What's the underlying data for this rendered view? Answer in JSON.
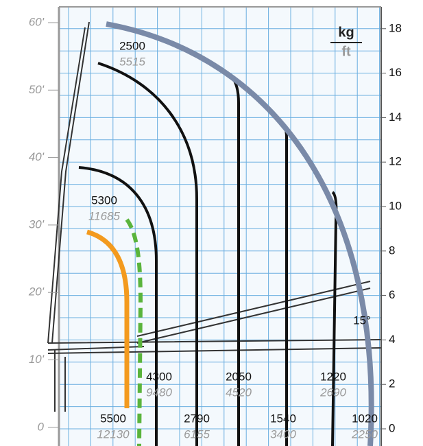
{
  "units": {
    "top": "kg",
    "bottom": "ft"
  },
  "left_axis": [
    "60'",
    "50'",
    "40'",
    "30'",
    "20'",
    "10'",
    "0"
  ],
  "right_axis": [
    0,
    2,
    4,
    6,
    8,
    10,
    12,
    14,
    16,
    18
  ],
  "angle_label": "15°",
  "loads": [
    {
      "kg": "2500",
      "lb": "5515"
    },
    {
      "kg": "5300",
      "lb": "11685"
    },
    {
      "kg": "4300",
      "lb": "9480"
    },
    {
      "kg": "2050",
      "lb": "4520"
    },
    {
      "kg": "1220",
      "lb": "2690"
    },
    {
      "kg": "5500",
      "lb": "12130"
    },
    {
      "kg": "2790",
      "lb": "6155"
    },
    {
      "kg": "1540",
      "lb": "3400"
    },
    {
      "kg": "1020",
      "lb": "2250"
    }
  ]
}
